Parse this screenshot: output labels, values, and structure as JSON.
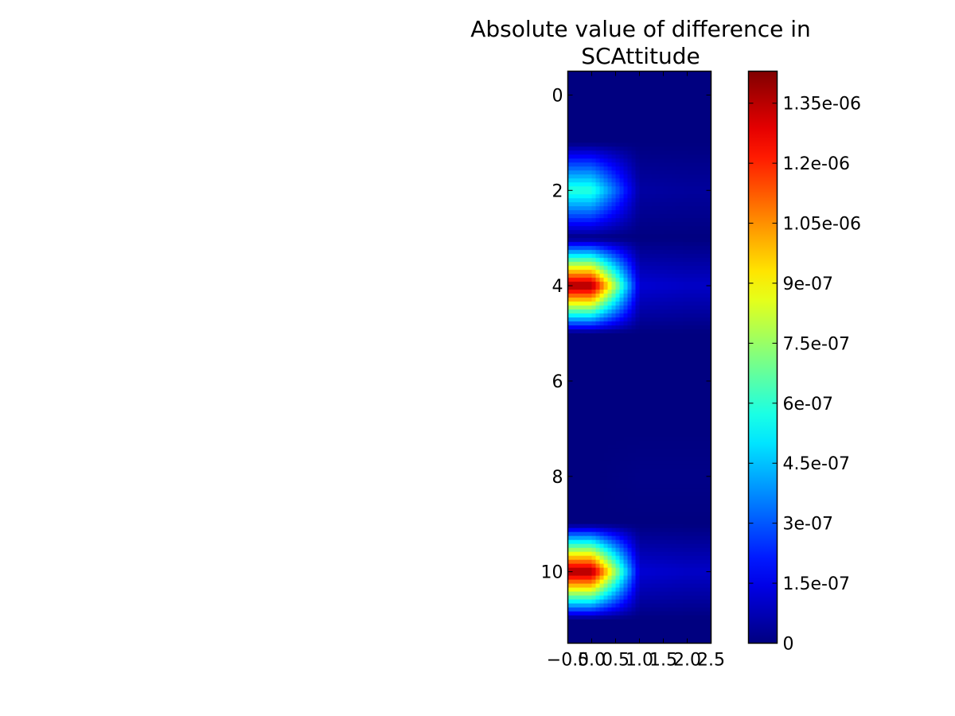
{
  "chart_data": {
    "type": "heatmap",
    "title_lines": [
      "Absolute value of difference in",
      "SCAttitude"
    ],
    "xlabel": "",
    "ylabel": "",
    "xlim": [
      -0.5,
      2.5
    ],
    "ylim": [
      11.5,
      -0.5
    ],
    "x_ticks": [
      -0.5,
      0.0,
      0.5,
      1.0,
      1.5,
      2.0,
      2.5
    ],
    "x_tick_labels": [
      "−0.5",
      "0.0",
      "0.5",
      "1.0",
      "1.5",
      "2.0",
      "2.5"
    ],
    "y_ticks": [
      0,
      2,
      4,
      6,
      8,
      10
    ],
    "y_tick_labels": [
      "0",
      "2",
      "4",
      "6",
      "8",
      "10"
    ],
    "n_rows": 12,
    "n_cols": 3,
    "interpolation": "bilinear",
    "colormap": "jet",
    "values": [
      [
        0,
        0,
        0
      ],
      [
        0,
        0,
        0
      ],
      [
        6e-07,
        5e-08,
        4e-08
      ],
      [
        0,
        0,
        0
      ],
      [
        1.4e-06,
        1.2e-07,
        1e-07
      ],
      [
        0,
        0,
        0
      ],
      [
        0,
        0,
        0
      ],
      [
        0,
        0,
        0
      ],
      [
        0,
        1e-08,
        1e-08
      ],
      [
        0,
        0,
        0
      ],
      [
        1.4e-06,
        1.2e-07,
        1e-07
      ],
      [
        0,
        0,
        0
      ]
    ],
    "colorbar": {
      "min": 0,
      "max": 1.43e-06,
      "ticks": [
        0,
        1.5e-07,
        3e-07,
        4.5e-07,
        6e-07,
        7.5e-07,
        9e-07,
        1.05e-06,
        1.2e-06,
        1.35e-06
      ],
      "tick_labels": [
        "0",
        "1.5e-07",
        "3e-07",
        "4.5e-07",
        "6e-07",
        "7.5e-07",
        "9e-07",
        "1.05e-06",
        "1.2e-06",
        "1.35e-06"
      ]
    },
    "grid": false,
    "colors": {
      "axis": "#000000",
      "background": "#ffffff"
    }
  }
}
